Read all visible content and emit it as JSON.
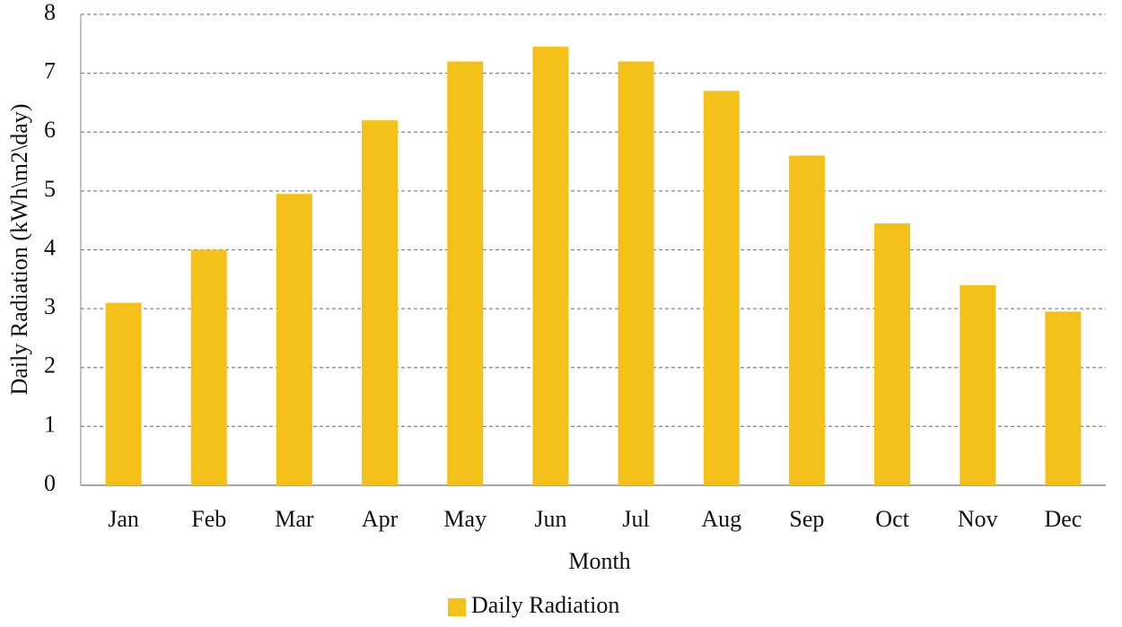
{
  "chart_data": {
    "type": "bar",
    "x_label": "Month",
    "y_label": "Daily Radiation (kWh\\m2\\day)",
    "categories": [
      "Jan",
      "Feb",
      "Mar",
      "Apr",
      "May",
      "Jun",
      "Jul",
      "Aug",
      "Sep",
      "Oct",
      "Nov",
      "Dec"
    ],
    "series": [
      {
        "name": "Daily Radiation",
        "color": "#f4c01a",
        "values": [
          3.1,
          4.0,
          4.95,
          6.2,
          7.2,
          7.45,
          7.2,
          6.7,
          5.6,
          4.45,
          3.4,
          2.95
        ]
      }
    ],
    "ylim": [
      0,
      8
    ],
    "yticks": [
      0,
      1,
      2,
      3,
      4,
      5,
      6,
      7,
      8
    ],
    "grid": true,
    "legend": "bottom"
  }
}
